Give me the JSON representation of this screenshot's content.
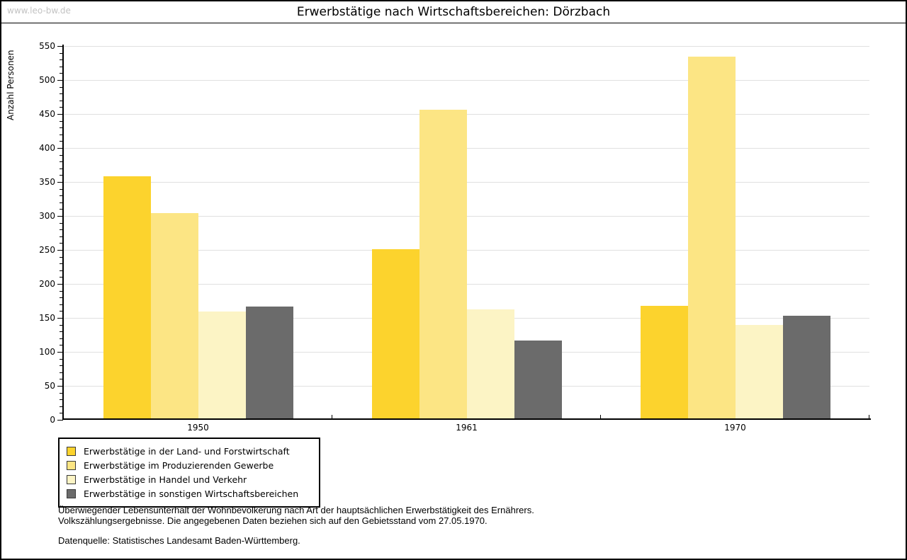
{
  "page": {
    "watermark": "www.leo-bw.de",
    "title": "Erwerbstätige nach Wirtschaftsbereichen: Dörzbach"
  },
  "chart_data": {
    "type": "bar",
    "title": "Erwerbstätige nach Wirtschaftsbereichen: Dörzbach",
    "xlabel": "",
    "ylabel": "Anzahl Personen",
    "ylim": [
      0,
      550
    ],
    "ytick_step": 50,
    "ytick_minor_step": 10,
    "grid": true,
    "legend_position": "bottom-left",
    "categories": [
      "1950",
      "1961",
      "1970"
    ],
    "series": [
      {
        "name": "Erwerbstätige in der Land- und Forstwirtschaft",
        "color": "#FCD32D",
        "values": [
          358,
          251,
          168
        ]
      },
      {
        "name": "Erwerbstätige im Produzierenden Gewerbe",
        "color": "#FCE584",
        "values": [
          304,
          456,
          534
        ]
      },
      {
        "name": "Erwerbstätige in Handel und Verkehr",
        "color": "#FCF4C5",
        "values": [
          159,
          162,
          140
        ]
      },
      {
        "name": "Erwerbstätige in sonstigen Wirtschaftsbereichen",
        "color": "#6B6B6B",
        "values": [
          167,
          117,
          153
        ]
      }
    ]
  },
  "footer": {
    "note_line1": "Überwiegender Lebensunterhalt der Wohnbevölkerung nach Art der hauptsächlichen Erwerbstätigkeit des Ernährers.",
    "note_line2": "Volkszählungsergebnisse. Die angegebenen Daten beziehen sich auf den Gebietsstand vom 27.05.1970.",
    "source": "Datenquelle: Statistisches Landesamt Baden-Württemberg."
  },
  "colors": {
    "gridline": "#E0E0E0",
    "axis": "#000000",
    "watermark": "#C3C3C3"
  }
}
